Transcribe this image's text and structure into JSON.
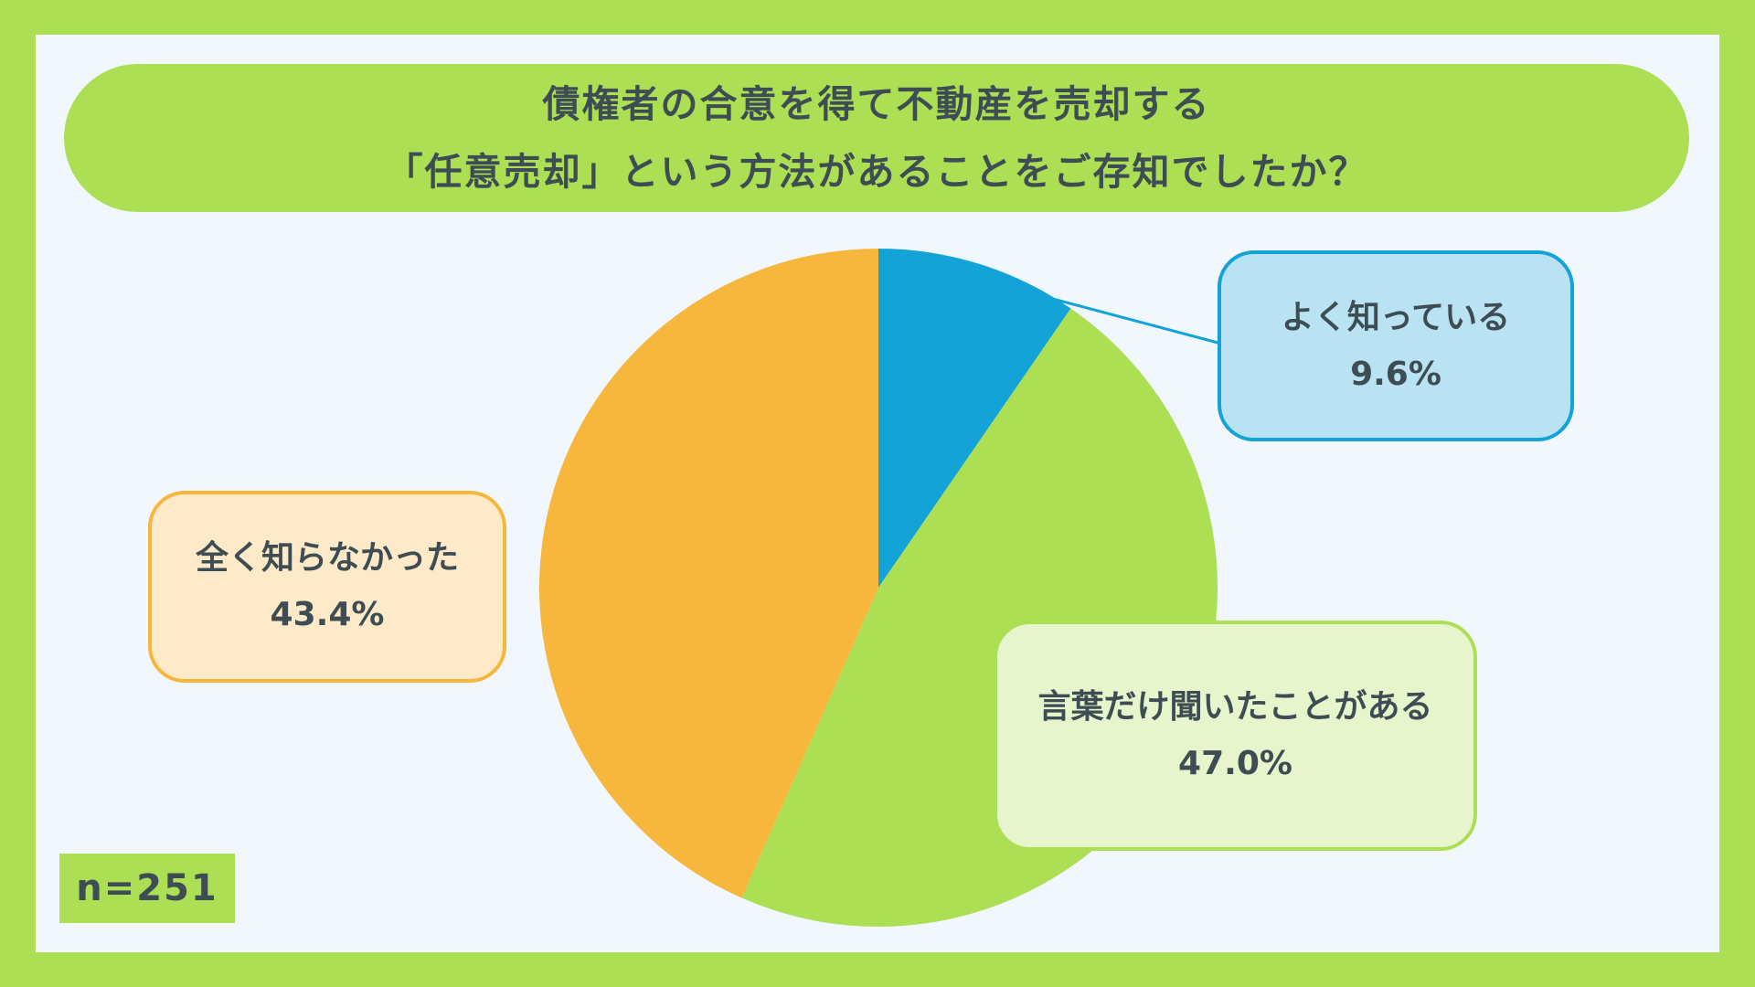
{
  "title_lines": [
    "債権者の合意を得て不動産を売却する",
    "「任意売却」という方法があることをご存知でしたか？"
  ],
  "sample_size": "n=251",
  "chart_data": {
    "type": "pie",
    "title": "債権者の合意を得て不動産を売却する「任意売却」という方法があることをご存知でしたか？",
    "slices": [
      {
        "label": "よく知っている",
        "value": 9.6,
        "value_label": "9.6%",
        "color": "#14a3d6",
        "label_bg": "#b9e3f3"
      },
      {
        "label": "言葉だけ聞いたことがある",
        "value": 47.0,
        "value_label": "47.0%",
        "color": "#addf55",
        "label_bg": "#e6f5cc"
      },
      {
        "label": "全く知らなかった",
        "value": 43.4,
        "value_label": "43.4%",
        "color": "#f7b63c",
        "label_bg": "#feeac8"
      }
    ],
    "legend": "none"
  }
}
